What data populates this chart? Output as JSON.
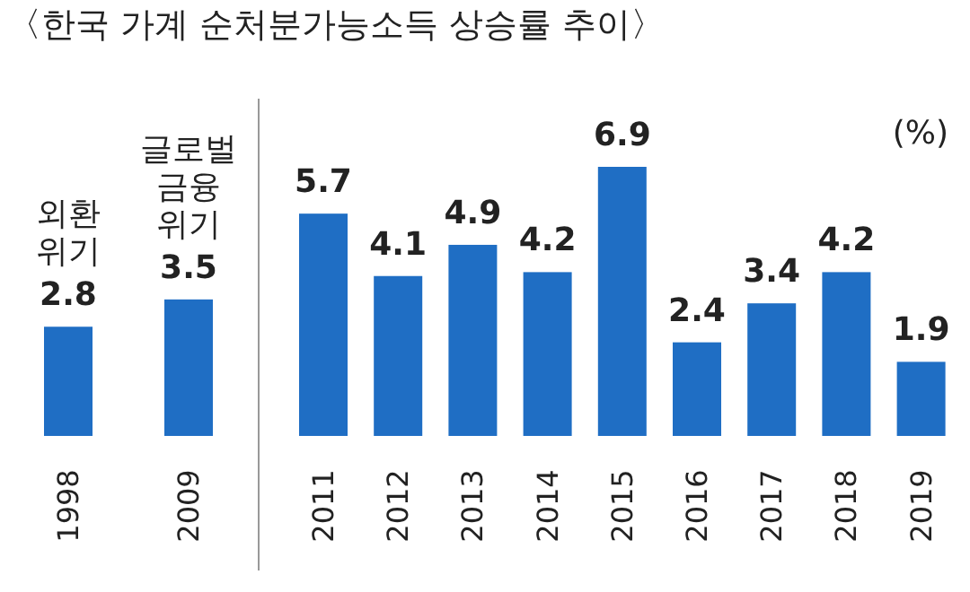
{
  "chart_data": {
    "type": "bar",
    "title": "〈한국 가계 순처분가능소득 상승률 추이〉",
    "ylabel": "(%)",
    "categories": [
      "1998",
      "2009",
      "2011",
      "2012",
      "2013",
      "2014",
      "2015",
      "2016",
      "2017",
      "2018",
      "2019"
    ],
    "values": [
      2.8,
      3.5,
      5.7,
      4.1,
      4.9,
      4.2,
      6.9,
      2.4,
      3.4,
      4.2,
      1.9
    ],
    "color": "#1f6ec4",
    "data_labels": true,
    "annotations": [
      "외환\n위기",
      "글로벌\n금융\n위기"
    ]
  }
}
